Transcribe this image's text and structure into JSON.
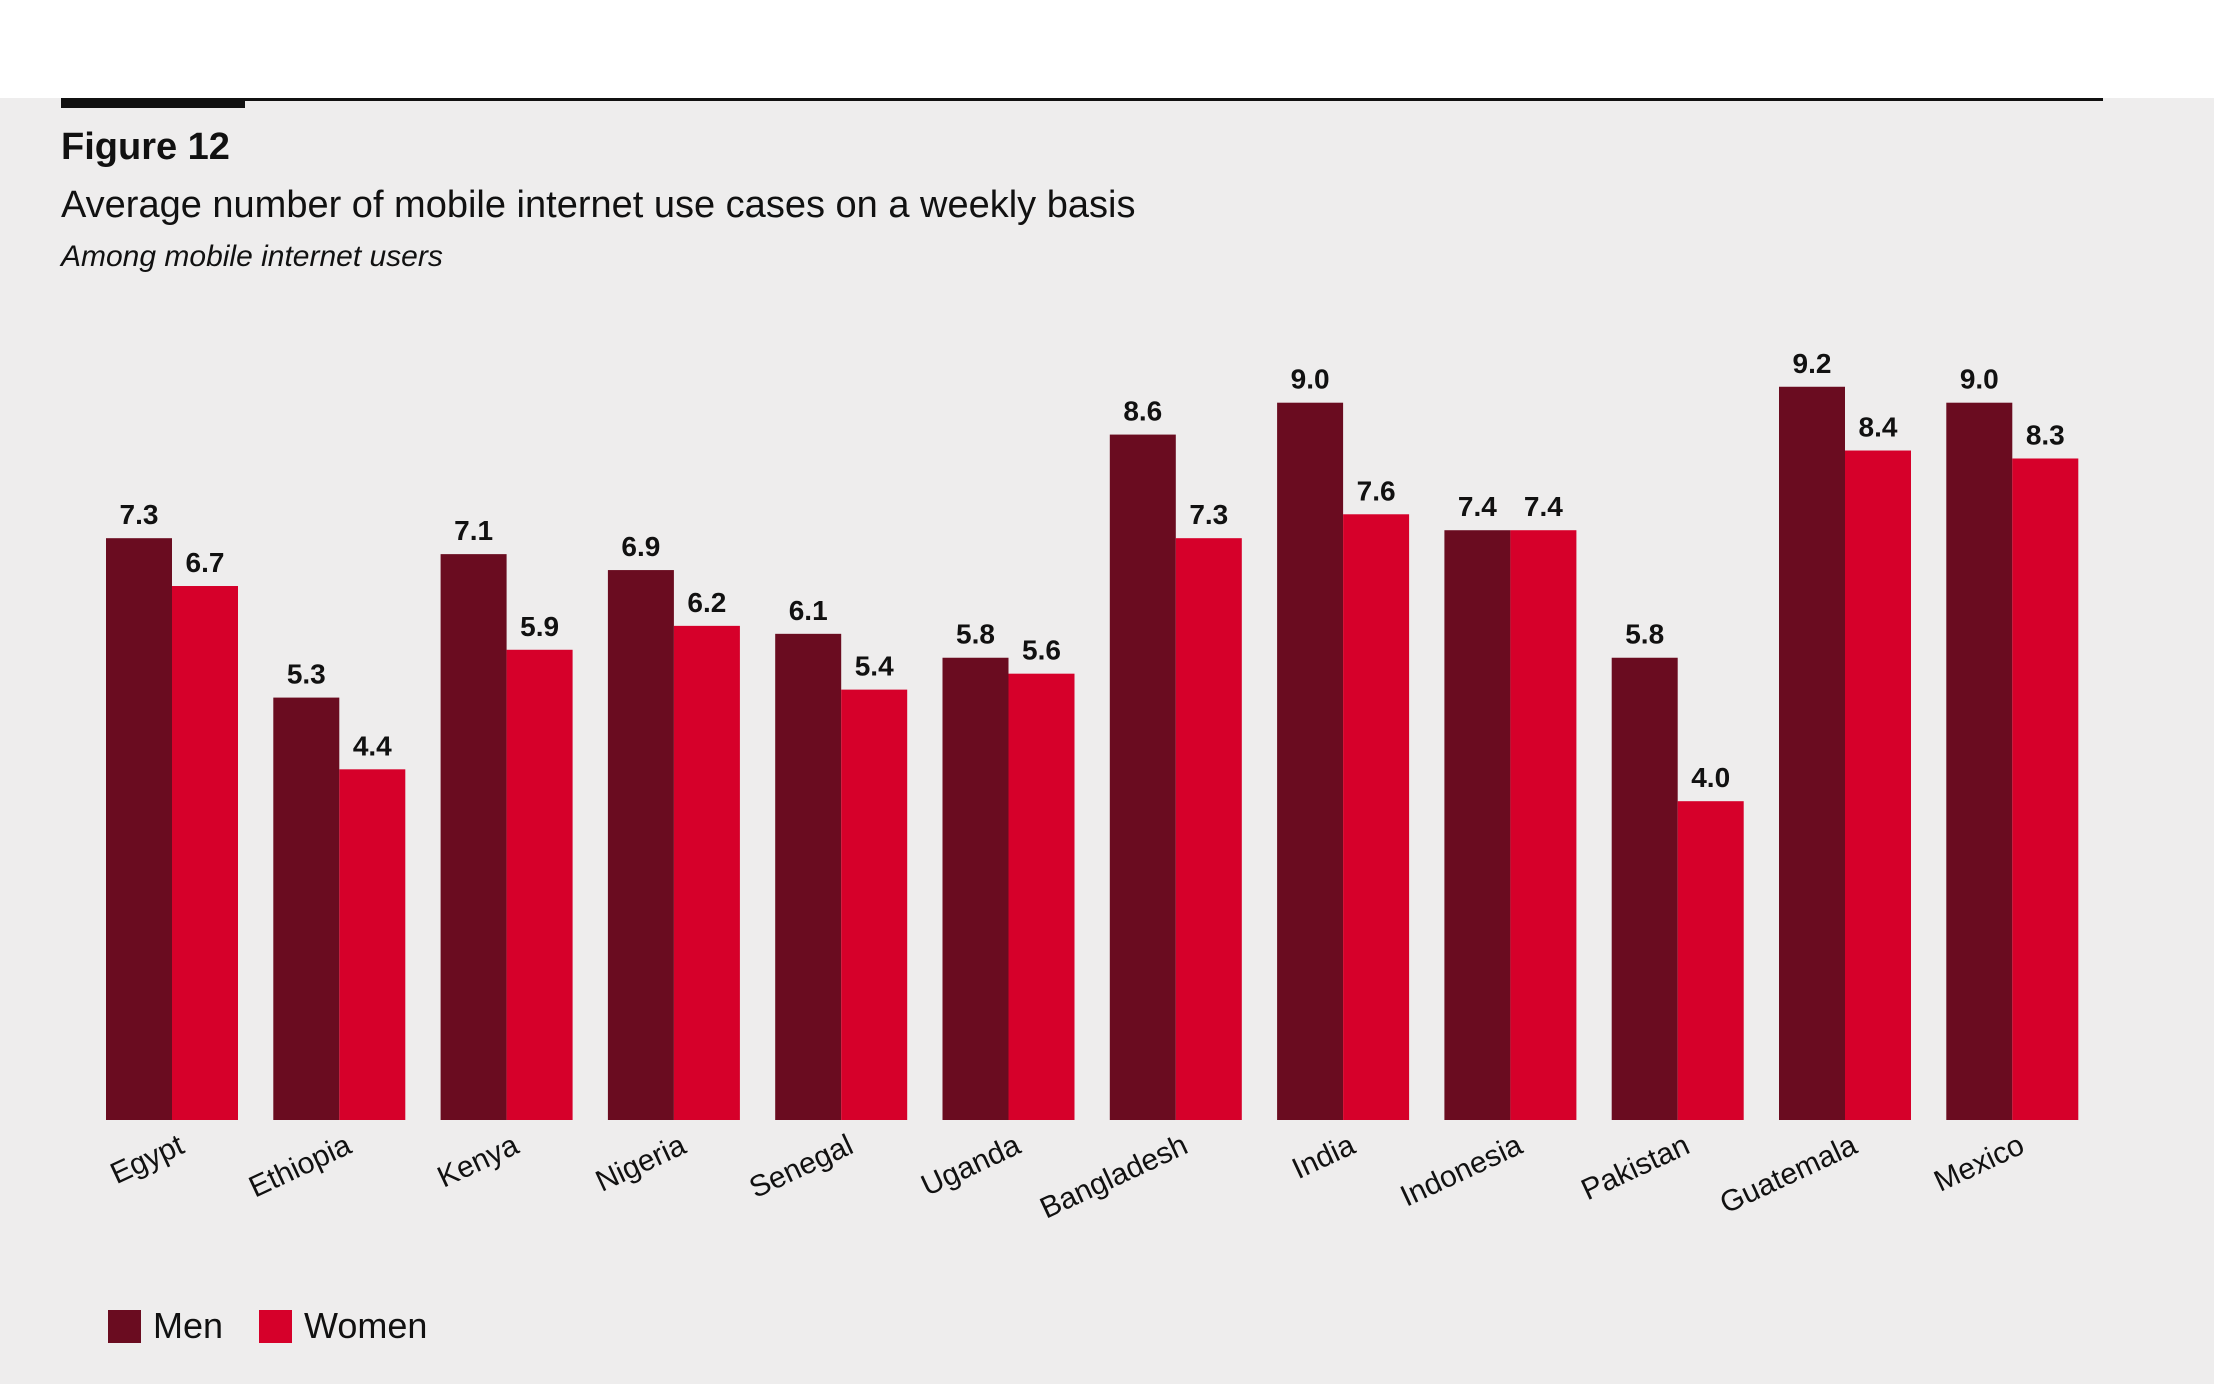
{
  "figure_label": "Figure 12",
  "title": "Average number of mobile internet use cases on a weekly basis",
  "subtitle": "Among mobile internet users",
  "colors": {
    "men": "#6a0c20",
    "women": "#d6002a"
  },
  "chart_data": {
    "type": "bar",
    "categories": [
      "Egypt",
      "Ethiopia",
      "Kenya",
      "Nigeria",
      "Senegal",
      "Uganda",
      "Bangladesh",
      "India",
      "Indonesia",
      "Pakistan",
      "Guatemala",
      "Mexico"
    ],
    "series": [
      {
        "name": "Men",
        "values": [
          7.3,
          5.3,
          7.1,
          6.9,
          6.1,
          5.8,
          8.6,
          9.0,
          7.4,
          5.8,
          9.2,
          9.0
        ]
      },
      {
        "name": "Women",
        "values": [
          6.7,
          4.4,
          5.9,
          6.2,
          5.4,
          5.6,
          7.3,
          7.6,
          7.4,
          4.0,
          8.4,
          8.3
        ]
      }
    ],
    "ylim": [
      0,
      9.2
    ],
    "grid": false,
    "legend_position": "bottom-left"
  }
}
